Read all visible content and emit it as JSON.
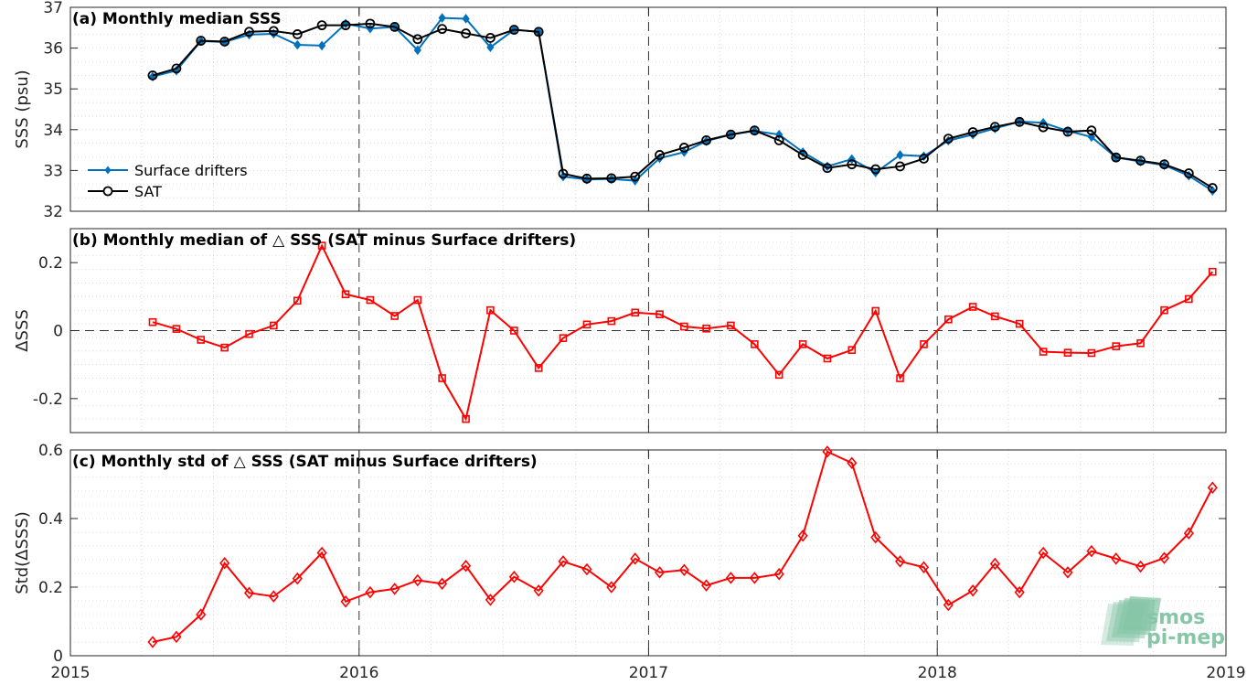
{
  "chart_data": [
    {
      "type": "line",
      "title": "(a) Monthly median SSS",
      "ylabel": "SSS (psu)",
      "xlim": [
        "2015-01-01",
        "2019-01-01"
      ],
      "ylim": [
        32,
        37
      ],
      "yticks": [
        32,
        33,
        34,
        35,
        36,
        37
      ],
      "ytick_labels": [
        "32",
        "33",
        "34",
        "35",
        "36",
        "37"
      ],
      "legend_position": "lower-left",
      "grid": true,
      "series": [
        {
          "name": "Surface drifters",
          "color": "#0072BD",
          "marker": "filled-diamond",
          "values": [
            [
              "2015-04-15",
              35.3
            ],
            [
              "2015-05-15",
              35.45
            ],
            [
              "2015-06-15",
              36.17
            ],
            [
              "2015-07-15",
              36.15
            ],
            [
              "2015-08-15",
              36.33
            ],
            [
              "2015-09-15",
              36.35
            ],
            [
              "2015-10-15",
              36.08
            ],
            [
              "2015-11-15",
              36.06
            ],
            [
              "2015-12-15",
              36.6
            ],
            [
              "2016-01-15",
              36.48
            ],
            [
              "2016-02-15",
              36.52
            ],
            [
              "2016-03-15",
              35.95
            ],
            [
              "2016-04-15",
              36.74
            ],
            [
              "2016-05-15",
              36.72
            ],
            [
              "2016-06-15",
              36.02
            ],
            [
              "2016-07-15",
              36.45
            ],
            [
              "2016-08-15",
              36.4
            ],
            [
              "2016-09-15",
              32.85
            ],
            [
              "2016-10-15",
              32.78
            ],
            [
              "2016-11-15",
              32.79
            ],
            [
              "2016-12-15",
              32.75
            ],
            [
              "2017-01-15",
              33.3
            ],
            [
              "2017-02-15",
              33.45
            ],
            [
              "2017-03-15",
              33.72
            ],
            [
              "2017-04-15",
              33.88
            ],
            [
              "2017-05-15",
              33.97
            ],
            [
              "2017-06-15",
              33.88
            ],
            [
              "2017-07-15",
              33.45
            ],
            [
              "2017-08-15",
              33.1
            ],
            [
              "2017-09-15",
              33.28
            ],
            [
              "2017-10-15",
              32.95
            ],
            [
              "2017-11-15",
              33.38
            ],
            [
              "2017-12-15",
              33.35
            ],
            [
              "2018-01-15",
              33.73
            ],
            [
              "2018-02-15",
              33.88
            ],
            [
              "2018-03-15",
              34.03
            ],
            [
              "2018-04-15",
              34.2
            ],
            [
              "2018-05-15",
              34.17
            ],
            [
              "2018-06-15",
              33.97
            ],
            [
              "2018-07-15",
              33.82
            ],
            [
              "2018-08-15",
              33.32
            ],
            [
              "2018-09-15",
              33.22
            ],
            [
              "2018-10-15",
              33.13
            ],
            [
              "2018-11-15",
              32.87
            ],
            [
              "2018-12-15",
              32.5
            ]
          ]
        },
        {
          "name": "SAT",
          "color": "#000000",
          "marker": "open-circle",
          "values": [
            [
              "2015-04-15",
              35.33
            ],
            [
              "2015-05-15",
              35.5
            ],
            [
              "2015-06-15",
              36.18
            ],
            [
              "2015-07-15",
              36.16
            ],
            [
              "2015-08-15",
              36.4
            ],
            [
              "2015-09-15",
              36.42
            ],
            [
              "2015-10-15",
              36.34
            ],
            [
              "2015-11-15",
              36.56
            ],
            [
              "2015-12-15",
              36.56
            ],
            [
              "2016-01-15",
              36.6
            ],
            [
              "2016-02-15",
              36.52
            ],
            [
              "2016-03-15",
              36.22
            ],
            [
              "2016-04-15",
              36.47
            ],
            [
              "2016-05-15",
              36.36
            ],
            [
              "2016-06-15",
              36.25
            ],
            [
              "2016-07-15",
              36.45
            ],
            [
              "2016-08-15",
              36.4
            ],
            [
              "2016-09-15",
              32.92
            ],
            [
              "2016-10-15",
              32.8
            ],
            [
              "2016-11-15",
              32.81
            ],
            [
              "2016-12-15",
              32.85
            ],
            [
              "2017-01-15",
              33.38
            ],
            [
              "2017-02-15",
              33.56
            ],
            [
              "2017-03-15",
              33.74
            ],
            [
              "2017-04-15",
              33.88
            ],
            [
              "2017-05-15",
              33.98
            ],
            [
              "2017-06-15",
              33.74
            ],
            [
              "2017-07-15",
              33.38
            ],
            [
              "2017-08-15",
              33.06
            ],
            [
              "2017-09-15",
              33.15
            ],
            [
              "2017-10-15",
              33.03
            ],
            [
              "2017-11-15",
              33.1
            ],
            [
              "2017-12-15",
              33.29
            ],
            [
              "2018-01-15",
              33.78
            ],
            [
              "2018-02-15",
              33.94
            ],
            [
              "2018-03-15",
              34.07
            ],
            [
              "2018-04-15",
              34.19
            ],
            [
              "2018-05-15",
              34.06
            ],
            [
              "2018-06-15",
              33.95
            ],
            [
              "2018-07-15",
              33.98
            ],
            [
              "2018-08-15",
              33.32
            ],
            [
              "2018-09-15",
              33.24
            ],
            [
              "2018-10-15",
              33.15
            ],
            [
              "2018-11-15",
              32.93
            ],
            [
              "2018-12-15",
              32.57
            ]
          ]
        }
      ]
    },
    {
      "type": "line",
      "title": "(b) Monthly median of △ SSS (SAT minus Surface drifters)",
      "ylabel": "ΔSSS",
      "xlim": [
        "2015-01-01",
        "2019-01-01"
      ],
      "ylim": [
        -0.3,
        0.3
      ],
      "yticks": [
        -0.2,
        0,
        0.2
      ],
      "ytick_labels": [
        "-0.2",
        "0",
        "0.2"
      ],
      "zero_line": "dashed",
      "grid": true,
      "series": [
        {
          "color": "#FF0000",
          "marker": "open-square",
          "values": [
            [
              "2015-04-15",
              0.025
            ],
            [
              "2015-05-15",
              0.005
            ],
            [
              "2015-06-15",
              -0.027
            ],
            [
              "2015-07-15",
              -0.05
            ],
            [
              "2015-08-15",
              -0.01
            ],
            [
              "2015-09-15",
              0.015
            ],
            [
              "2015-10-15",
              0.088
            ],
            [
              "2015-11-15",
              0.25
            ],
            [
              "2015-12-15",
              0.107
            ],
            [
              "2016-01-15",
              0.09
            ],
            [
              "2016-02-15",
              0.043
            ],
            [
              "2016-03-15",
              0.09
            ],
            [
              "2016-04-15",
              -0.14
            ],
            [
              "2016-05-15",
              -0.26
            ],
            [
              "2016-06-15",
              0.06
            ],
            [
              "2016-07-15",
              0.0
            ],
            [
              "2016-08-15",
              -0.11
            ],
            [
              "2016-09-15",
              -0.022
            ],
            [
              "2016-10-15",
              0.018
            ],
            [
              "2016-11-15",
              0.028
            ],
            [
              "2016-12-15",
              0.053
            ],
            [
              "2017-01-15",
              0.048
            ],
            [
              "2017-02-15",
              0.012
            ],
            [
              "2017-03-15",
              0.006
            ],
            [
              "2017-04-15",
              0.015
            ],
            [
              "2017-05-15",
              -0.04
            ],
            [
              "2017-06-15",
              -0.13
            ],
            [
              "2017-07-15",
              -0.04
            ],
            [
              "2017-08-15",
              -0.082
            ],
            [
              "2017-09-15",
              -0.057
            ],
            [
              "2017-10-15",
              0.058
            ],
            [
              "2017-11-15",
              -0.14
            ],
            [
              "2017-12-15",
              -0.04
            ],
            [
              "2018-01-15",
              0.033
            ],
            [
              "2018-02-15",
              0.07
            ],
            [
              "2018-03-15",
              0.042
            ],
            [
              "2018-04-15",
              0.02
            ],
            [
              "2018-05-15",
              -0.062
            ],
            [
              "2018-06-15",
              -0.065
            ],
            [
              "2018-07-15",
              -0.066
            ],
            [
              "2018-08-15",
              -0.046
            ],
            [
              "2018-09-15",
              -0.037
            ],
            [
              "2018-10-15",
              0.06
            ],
            [
              "2018-11-15",
              0.093
            ],
            [
              "2018-12-15",
              0.173
            ]
          ]
        }
      ]
    },
    {
      "type": "line",
      "title": "(c) Monthly std of △ SSS (SAT minus Surface drifters)",
      "ylabel": "Std(ΔSSS)",
      "xlim": [
        "2015-01-01",
        "2019-01-01"
      ],
      "ylim": [
        0,
        0.6
      ],
      "yticks": [
        0,
        0.2,
        0.4,
        0.6
      ],
      "ytick_labels": [
        "0",
        "0.2",
        "0.4",
        "0.6"
      ],
      "xticks": [
        "2015-01-01",
        "2016-01-01",
        "2017-01-01",
        "2018-01-01",
        "2019-01-01"
      ],
      "xtick_labels": [
        "2015",
        "2016",
        "2017",
        "2018",
        "2019"
      ],
      "grid": true,
      "series": [
        {
          "color": "#FF0000",
          "marker": "open-diamond",
          "values": [
            [
              "2015-04-15",
              0.04
            ],
            [
              "2015-05-15",
              0.055
            ],
            [
              "2015-06-15",
              0.12
            ],
            [
              "2015-07-15",
              0.27
            ],
            [
              "2015-08-15",
              0.183
            ],
            [
              "2015-09-15",
              0.173
            ],
            [
              "2015-10-15",
              0.225
            ],
            [
              "2015-11-15",
              0.3
            ],
            [
              "2015-12-15",
              0.158
            ],
            [
              "2016-01-15",
              0.185
            ],
            [
              "2016-02-15",
              0.195
            ],
            [
              "2016-03-15",
              0.22
            ],
            [
              "2016-04-15",
              0.21
            ],
            [
              "2016-05-15",
              0.262
            ],
            [
              "2016-06-15",
              0.163
            ],
            [
              "2016-07-15",
              0.23
            ],
            [
              "2016-08-15",
              0.19
            ],
            [
              "2016-09-15",
              0.275
            ],
            [
              "2016-10-15",
              0.252
            ],
            [
              "2016-11-15",
              0.2
            ],
            [
              "2016-12-15",
              0.283
            ],
            [
              "2017-01-15",
              0.243
            ],
            [
              "2017-02-15",
              0.25
            ],
            [
              "2017-03-15",
              0.205
            ],
            [
              "2017-04-15",
              0.227
            ],
            [
              "2017-05-15",
              0.227
            ],
            [
              "2017-06-15",
              0.238
            ],
            [
              "2017-07-15",
              0.35
            ],
            [
              "2017-08-15",
              0.595
            ],
            [
              "2017-09-15",
              0.562
            ],
            [
              "2017-10-15",
              0.345
            ],
            [
              "2017-11-15",
              0.275
            ],
            [
              "2017-12-15",
              0.258
            ],
            [
              "2018-01-15",
              0.148
            ],
            [
              "2018-02-15",
              0.19
            ],
            [
              "2018-03-15",
              0.268
            ],
            [
              "2018-04-15",
              0.185
            ],
            [
              "2018-05-15",
              0.3
            ],
            [
              "2018-06-15",
              0.243
            ],
            [
              "2018-07-15",
              0.305
            ],
            [
              "2018-08-15",
              0.283
            ],
            [
              "2018-09-15",
              0.26
            ],
            [
              "2018-10-15",
              0.285
            ],
            [
              "2018-11-15",
              0.357
            ],
            [
              "2018-12-15",
              0.49
            ]
          ]
        }
      ]
    }
  ],
  "logo": {
    "line1": "smos",
    "line2": "pi-mep",
    "color": "#5fb38a"
  }
}
